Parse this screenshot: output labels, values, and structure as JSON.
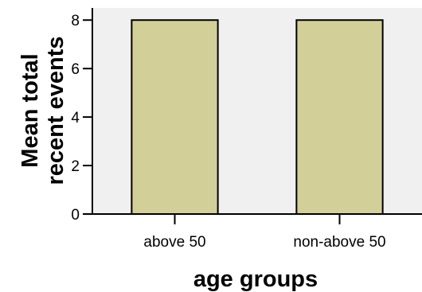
{
  "chart_data": {
    "type": "bar",
    "categories": [
      "above 50",
      "non-above 50"
    ],
    "values": [
      8.0,
      8.0
    ],
    "title": "",
    "xlabel": "age groups",
    "ylabel_lines": [
      "Mean total",
      "recent events"
    ],
    "ylim": [
      0,
      8.5
    ],
    "yticks": [
      "0",
      "2",
      "4",
      "6",
      "8"
    ],
    "bar_color": "#d3cf98",
    "plot_background": "#f0f0f0",
    "grid": false,
    "legend": "none"
  }
}
